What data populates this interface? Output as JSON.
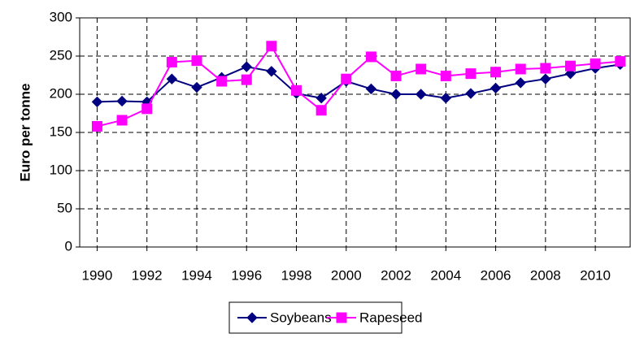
{
  "chart_data": {
    "type": "line",
    "y_label": "Euro per tonne",
    "x": [
      1990,
      1991,
      1992,
      1993,
      1994,
      1995,
      1996,
      1997,
      1998,
      1999,
      2000,
      2001,
      2002,
      2003,
      2004,
      2005,
      2006,
      2007,
      2008,
      2009,
      2010,
      2011
    ],
    "series": [
      {
        "name": "Soybeans",
        "color": "#000080",
        "marker": "diamond",
        "values": [
          190,
          191,
          190,
          220,
          209,
          222,
          236,
          230,
          201,
          195,
          217,
          207,
          200,
          200,
          195,
          201,
          208,
          215,
          220,
          227,
          234,
          239
        ]
      },
      {
        "name": "Rapeseed",
        "color": "#ff00ff",
        "marker": "square",
        "values": [
          158,
          166,
          181,
          242,
          244,
          217,
          219,
          263,
          205,
          179,
          220,
          249,
          224,
          233,
          224,
          227,
          229,
          233,
          234,
          237,
          240,
          243
        ]
      }
    ],
    "xlim": [
      1989.3,
      2011.4
    ],
    "xticks": [
      1990,
      1992,
      1994,
      1996,
      1998,
      2000,
      2002,
      2004,
      2006,
      2008,
      2010
    ],
    "ylim": [
      0,
      300
    ],
    "yticks": [
      0,
      50,
      100,
      150,
      200,
      250,
      300
    ],
    "grid": true,
    "legend": "bottom"
  }
}
